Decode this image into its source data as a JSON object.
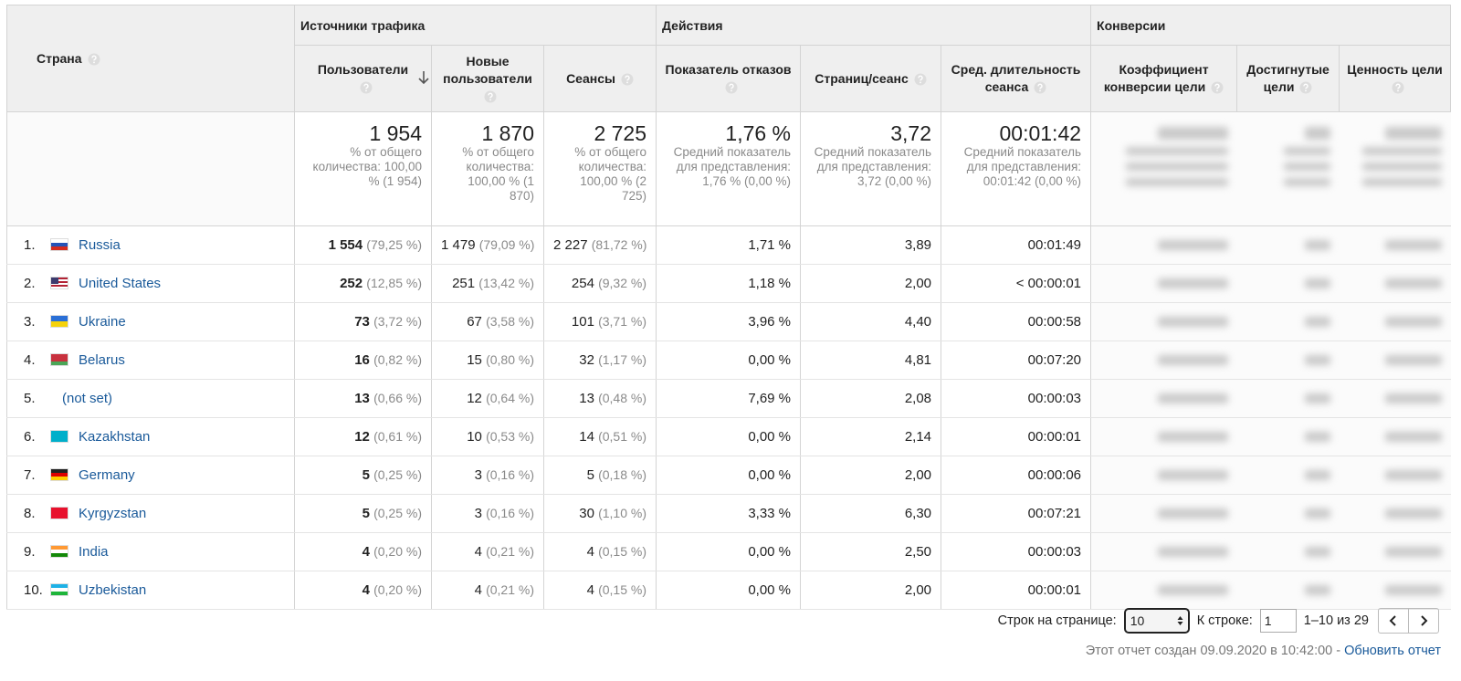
{
  "header": {
    "country": "Страна",
    "groups": [
      "Источники трафика",
      "Действия",
      "Конверсии"
    ],
    "columns": [
      "Пользователи",
      "Новые пользователи",
      "Сеансы",
      "Показатель отказов",
      "Страниц/сеанс",
      "Сред. длительность сеанса",
      "Коэффициент конверсии цели",
      "Достигнутые цели",
      "Ценность цели"
    ]
  },
  "totals": [
    {
      "value": "1 954",
      "note": "% от общего количества: 100,00 % (1 954)"
    },
    {
      "value": "1 870",
      "note": "% от общего количества: 100,00 % (1 870)"
    },
    {
      "value": "2 725",
      "note": "% от общего количества: 100,00 % (2 725)"
    },
    {
      "value": "1,76 %",
      "note": "Средний показатель для представления: 1,76 % (0,00 %)"
    },
    {
      "value": "3,72",
      "note": "Средний показатель для представления: 3,72 (0,00 %)"
    },
    {
      "value": "00:01:42",
      "note": "Средний показатель для представления: 00:01:42 (0,00 %)"
    }
  ],
  "rows": [
    {
      "rank": "1.",
      "country": "Russia",
      "users": [
        "1 554",
        "(79,25 %)"
      ],
      "new_users": [
        "1 479",
        "(79,09 %)"
      ],
      "sessions": [
        "2 227",
        "(81,72 %)"
      ],
      "bounce_rate": "1,71 %",
      "pages_per_session": "3,89",
      "duration": "00:01:49"
    },
    {
      "rank": "2.",
      "country": "United States",
      "users": [
        "252",
        "(12,85 %)"
      ],
      "new_users": [
        "251",
        "(13,42 %)"
      ],
      "sessions": [
        "254",
        "(9,32 %)"
      ],
      "bounce_rate": "1,18 %",
      "pages_per_session": "2,00",
      "duration": "< 00:00:01"
    },
    {
      "rank": "3.",
      "country": "Ukraine",
      "users": [
        "73",
        "(3,72 %)"
      ],
      "new_users": [
        "67",
        "(3,58 %)"
      ],
      "sessions": [
        "101",
        "(3,71 %)"
      ],
      "bounce_rate": "3,96 %",
      "pages_per_session": "4,40",
      "duration": "00:00:58"
    },
    {
      "rank": "4.",
      "country": "Belarus",
      "users": [
        "16",
        "(0,82 %)"
      ],
      "new_users": [
        "15",
        "(0,80 %)"
      ],
      "sessions": [
        "32",
        "(1,17 %)"
      ],
      "bounce_rate": "0,00 %",
      "pages_per_session": "4,81",
      "duration": "00:07:20"
    },
    {
      "rank": "5.",
      "country": "(not set)",
      "users": [
        "13",
        "(0,66 %)"
      ],
      "new_users": [
        "12",
        "(0,64 %)"
      ],
      "sessions": [
        "13",
        "(0,48 %)"
      ],
      "bounce_rate": "7,69 %",
      "pages_per_session": "2,08",
      "duration": "00:00:03"
    },
    {
      "rank": "6.",
      "country": "Kazakhstan",
      "users": [
        "12",
        "(0,61 %)"
      ],
      "new_users": [
        "10",
        "(0,53 %)"
      ],
      "sessions": [
        "14",
        "(0,51 %)"
      ],
      "bounce_rate": "0,00 %",
      "pages_per_session": "2,14",
      "duration": "00:00:01"
    },
    {
      "rank": "7.",
      "country": "Germany",
      "users": [
        "5",
        "(0,25 %)"
      ],
      "new_users": [
        "3",
        "(0,16 %)"
      ],
      "sessions": [
        "5",
        "(0,18 %)"
      ],
      "bounce_rate": "0,00 %",
      "pages_per_session": "2,00",
      "duration": "00:00:06"
    },
    {
      "rank": "8.",
      "country": "Kyrgyzstan",
      "users": [
        "5",
        "(0,25 %)"
      ],
      "new_users": [
        "3",
        "(0,16 %)"
      ],
      "sessions": [
        "30",
        "(1,10 %)"
      ],
      "bounce_rate": "3,33 %",
      "pages_per_session": "6,30",
      "duration": "00:07:21"
    },
    {
      "rank": "9.",
      "country": "India",
      "users": [
        "4",
        "(0,20 %)"
      ],
      "new_users": [
        "4",
        "(0,21 %)"
      ],
      "sessions": [
        "4",
        "(0,15 %)"
      ],
      "bounce_rate": "0,00 %",
      "pages_per_session": "2,50",
      "duration": "00:00:03"
    },
    {
      "rank": "10.",
      "country": "Uzbekistan",
      "users": [
        "4",
        "(0,20 %)"
      ],
      "new_users": [
        "4",
        "(0,21 %)"
      ],
      "sessions": [
        "4",
        "(0,15 %)"
      ],
      "bounce_rate": "0,00 %",
      "pages_per_session": "2,00",
      "duration": "00:00:01"
    }
  ],
  "footer": {
    "rows_label": "Строк на странице:",
    "rows_value": "10",
    "goto_label": "К строке:",
    "goto_value": "1",
    "range": "1–10 из 29",
    "report": "Этот отчет создан 09.09.2020 в 10:42:00 -",
    "refresh": "Обновить отчет"
  }
}
